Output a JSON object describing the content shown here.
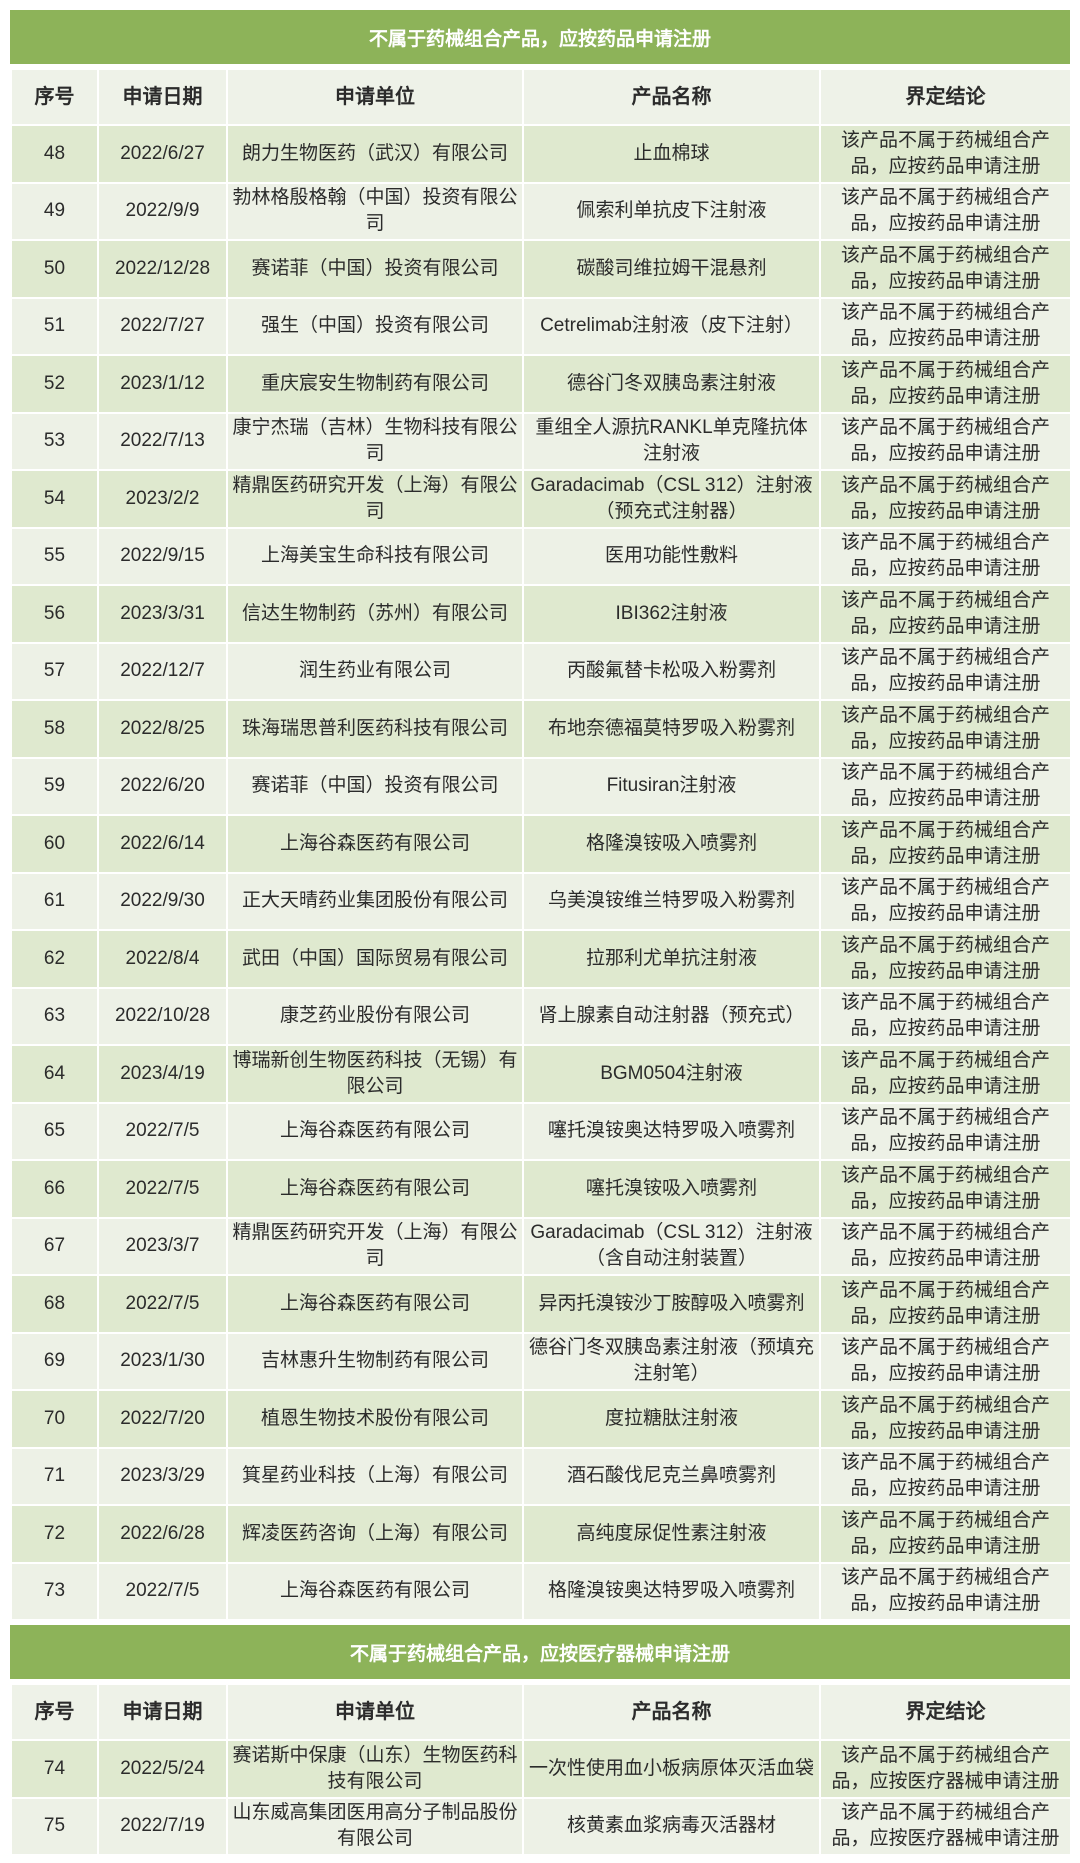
{
  "columns": [
    "序号",
    "申请日期",
    "申请单位",
    "产品名称",
    "界定结论"
  ],
  "sections": [
    {
      "title": "不属于药械组合产品，应按药品申请注册",
      "rows": [
        [
          "48",
          "2022/6/27",
          "朗力生物医药（武汉）有限公司",
          "止血棉球",
          "该产品不属于药械组合产品，应按药品申请注册"
        ],
        [
          "49",
          "2022/9/9",
          "勃林格殷格翰（中国）投资有限公司",
          "佩索利单抗皮下注射液",
          "该产品不属于药械组合产品，应按药品申请注册"
        ],
        [
          "50",
          "2022/12/28",
          "赛诺菲（中国）投资有限公司",
          "碳酸司维拉姆干混悬剂",
          "该产品不属于药械组合产品，应按药品申请注册"
        ],
        [
          "51",
          "2022/7/27",
          "强生（中国）投资有限公司",
          "Cetrelimab注射液（皮下注射）",
          "该产品不属于药械组合产品，应按药品申请注册"
        ],
        [
          "52",
          "2023/1/12",
          "重庆宸安生物制药有限公司",
          "德谷门冬双胰岛素注射液",
          "该产品不属于药械组合产品，应按药品申请注册"
        ],
        [
          "53",
          "2022/7/13",
          "康宁杰瑞（吉林）生物科技有限公司",
          "重组全人源抗RANKL单克隆抗体注射液",
          "该产品不属于药械组合产品，应按药品申请注册"
        ],
        [
          "54",
          "2023/2/2",
          "精鼎医药研究开发（上海）有限公司",
          "Garadacimab（CSL 312）注射液（预充式注射器）",
          "该产品不属于药械组合产品，应按药品申请注册"
        ],
        [
          "55",
          "2022/9/15",
          "上海美宝生命科技有限公司",
          "医用功能性敷料",
          "该产品不属于药械组合产品，应按药品申请注册"
        ],
        [
          "56",
          "2023/3/31",
          "信达生物制药（苏州）有限公司",
          "IBI362注射液",
          "该产品不属于药械组合产品，应按药品申请注册"
        ],
        [
          "57",
          "2022/12/7",
          "润生药业有限公司",
          "丙酸氟替卡松吸入粉雾剂",
          "该产品不属于药械组合产品，应按药品申请注册"
        ],
        [
          "58",
          "2022/8/25",
          "珠海瑞思普利医药科技有限公司",
          "布地奈德福莫特罗吸入粉雾剂",
          "该产品不属于药械组合产品，应按药品申请注册"
        ],
        [
          "59",
          "2022/6/20",
          "赛诺菲（中国）投资有限公司",
          "Fitusiran注射液",
          "该产品不属于药械组合产品，应按药品申请注册"
        ],
        [
          "60",
          "2022/6/14",
          "上海谷森医药有限公司",
          "格隆溴铵吸入喷雾剂",
          "该产品不属于药械组合产品，应按药品申请注册"
        ],
        [
          "61",
          "2022/9/30",
          "正大天晴药业集团股份有限公司",
          "乌美溴铵维兰特罗吸入粉雾剂",
          "该产品不属于药械组合产品，应按药品申请注册"
        ],
        [
          "62",
          "2022/8/4",
          "武田（中国）国际贸易有限公司",
          "拉那利尤单抗注射液",
          "该产品不属于药械组合产品，应按药品申请注册"
        ],
        [
          "63",
          "2022/10/28",
          "康芝药业股份有限公司",
          "肾上腺素自动注射器（预充式）",
          "该产品不属于药械组合产品，应按药品申请注册"
        ],
        [
          "64",
          "2023/4/19",
          "博瑞新创生物医药科技（无锡）有限公司",
          "BGM0504注射液",
          "该产品不属于药械组合产品，应按药品申请注册"
        ],
        [
          "65",
          "2022/7/5",
          "上海谷森医药有限公司",
          "噻托溴铵奥达特罗吸入喷雾剂",
          "该产品不属于药械组合产品，应按药品申请注册"
        ],
        [
          "66",
          "2022/7/5",
          "上海谷森医药有限公司",
          "噻托溴铵吸入喷雾剂",
          "该产品不属于药械组合产品，应按药品申请注册"
        ],
        [
          "67",
          "2023/3/7",
          "精鼎医药研究开发（上海）有限公司",
          "Garadacimab（CSL 312）注射液（含自动注射装置）",
          "该产品不属于药械组合产品，应按药品申请注册"
        ],
        [
          "68",
          "2022/7/5",
          "上海谷森医药有限公司",
          "异丙托溴铵沙丁胺醇吸入喷雾剂",
          "该产品不属于药械组合产品，应按药品申请注册"
        ],
        [
          "69",
          "2023/1/30",
          "吉林惠升生物制药有限公司",
          "德谷门冬双胰岛素注射液（预填充注射笔）",
          "该产品不属于药械组合产品，应按药品申请注册"
        ],
        [
          "70",
          "2022/7/20",
          "植恩生物技术股份有限公司",
          "度拉糖肽注射液",
          "该产品不属于药械组合产品，应按药品申请注册"
        ],
        [
          "71",
          "2023/3/29",
          "箕星药业科技（上海）有限公司",
          "酒石酸伐尼克兰鼻喷雾剂",
          "该产品不属于药械组合产品，应按药品申请注册"
        ],
        [
          "72",
          "2022/6/28",
          "辉凌医药咨询（上海）有限公司",
          "高纯度尿促性素注射液",
          "该产品不属于药械组合产品，应按药品申请注册"
        ],
        [
          "73",
          "2022/7/5",
          "上海谷森医药有限公司",
          "格隆溴铵奥达特罗吸入喷雾剂",
          "该产品不属于药械组合产品，应按药品申请注册"
        ]
      ]
    },
    {
      "title": "不属于药械组合产品，应按医疗器械申请注册",
      "rows": [
        [
          "74",
          "2022/5/24",
          "赛诺斯中保康（山东）生物医药科技有限公司",
          "一次性使用血小板病原体灭活血袋",
          "该产品不属于药械组合产品，应按医疗器械申请注册"
        ],
        [
          "75",
          "2022/7/19",
          "山东威高集团医用高分子制品股份有限公司",
          "核黄素血浆病毒灭活器材",
          "该产品不属于药械组合产品，应按医疗器械申请注册"
        ]
      ]
    }
  ],
  "colors": {
    "band": "#8db359",
    "row_even": "#dfe9cf",
    "row_odd": "#edf1e6",
    "header": "#eef2e8"
  }
}
